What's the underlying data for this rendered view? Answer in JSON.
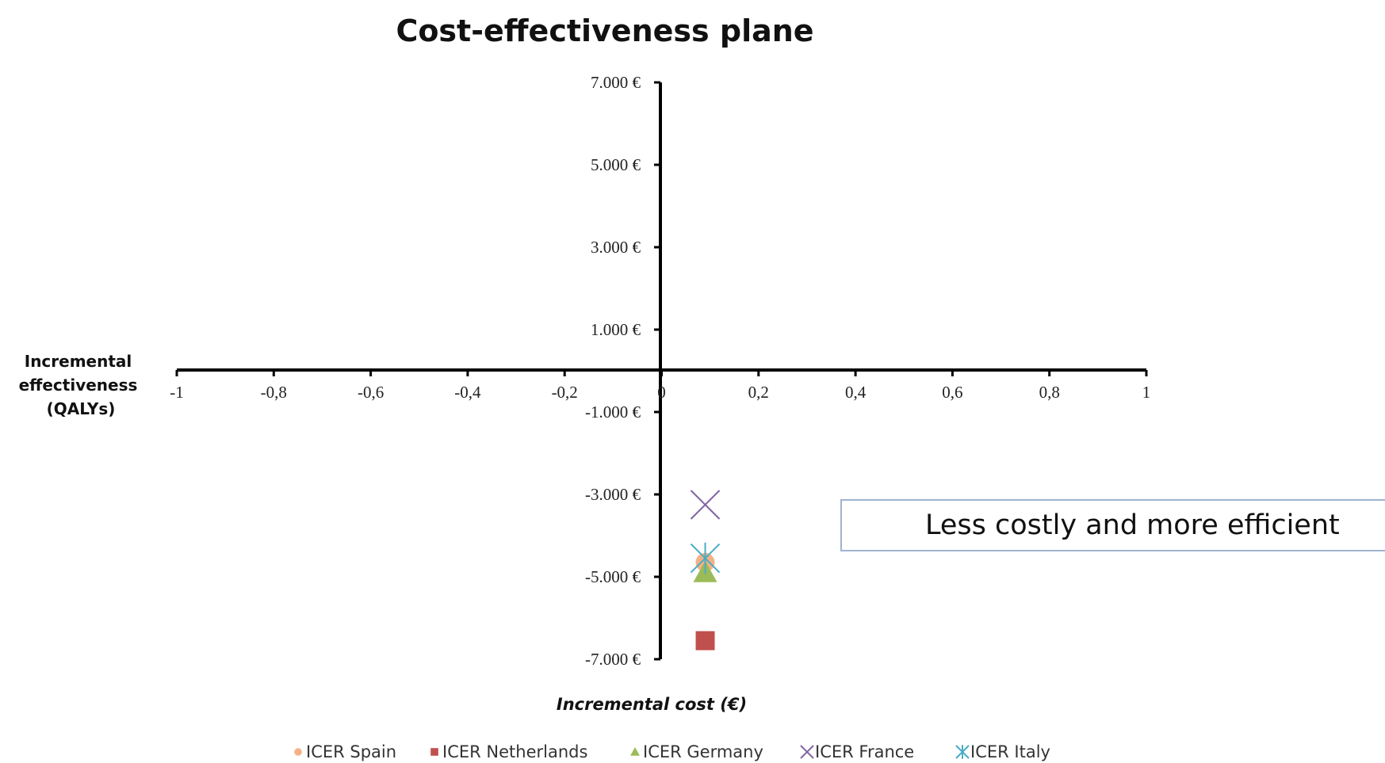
{
  "chart_data": {
    "type": "scatter",
    "title": "Cost-effectiveness plane",
    "xlabel": "Incremental cost (€)",
    "ylabel": "Incremental effectiveness (QALYs)",
    "xlim": [
      -1,
      1
    ],
    "ylim": [
      -8000,
      7000
    ],
    "x_ticks": [
      "-1",
      "-0,8",
      "-0,6",
      "-0,4",
      "-0,2",
      "0",
      "0,2",
      "0,4",
      "0,6",
      "0,8",
      "1"
    ],
    "y_ticks": [
      "7.000 €",
      "5.000 €",
      "3.000 €",
      "1.000 €",
      "-1.000 €",
      "-3.000 €",
      "-5.000 €",
      "-7.000 €"
    ],
    "series": [
      {
        "name": "ICER Spain",
        "marker": "circle",
        "color": "#f4b183",
        "x": 0.09,
        "y": -4650
      },
      {
        "name": "ICER Netherlands",
        "marker": "square",
        "color": "#c0504d",
        "x": 0.09,
        "y": -6550
      },
      {
        "name": "ICER Germany",
        "marker": "triangle",
        "color": "#9bbb59",
        "x": 0.09,
        "y": -4900
      },
      {
        "name": "ICER France",
        "marker": "x",
        "color": "#8064a2",
        "x": 0.09,
        "y": -3250
      },
      {
        "name": "ICER Italy",
        "marker": "star",
        "color": "#4bacc6",
        "x": 0.09,
        "y": -4550
      }
    ],
    "annotation": "Less costly and more efficient",
    "legend_position": "bottom",
    "grid": false
  }
}
